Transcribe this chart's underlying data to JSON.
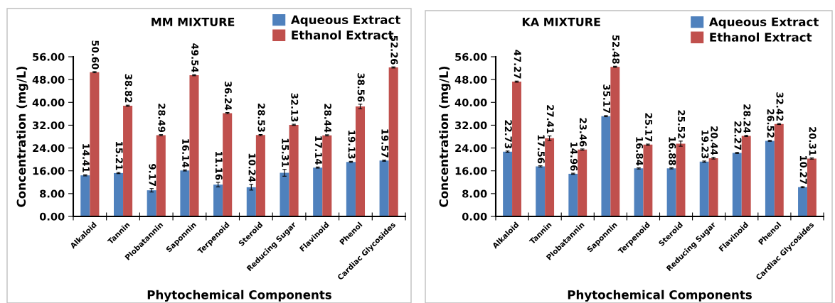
{
  "chart_data": [
    {
      "type": "bar",
      "title": "MM MIXTURE",
      "xlabel": "Phytochemical Components",
      "ylabel": "Concentration (mg/L)",
      "categories": [
        "Alkaloid",
        "Tannin",
        "Plobatannin",
        "Saponnin",
        "Terpenoid",
        "Steroid",
        "Reducing Sugar",
        "Flavinoid",
        "Phenol",
        "Cardiac Glycosides"
      ],
      "series": [
        {
          "name": "Aqueous Extract",
          "color": "#4f81bd",
          "values": [
            14.41,
            15.21,
            9.17,
            16.14,
            11.16,
            10.24,
            15.31,
            17.14,
            19.13,
            19.57
          ],
          "value_labels": [
            "14.41",
            "15.21",
            "9.17",
            "16.14",
            "11.16",
            "10.24",
            "15.31",
            "17.14",
            "19.13",
            "19.57"
          ],
          "errors": [
            0.2,
            0.2,
            0.6,
            0.2,
            0.8,
            1.0,
            1.2,
            0.2,
            0.2,
            0.2
          ]
        },
        {
          "name": "Ethanol Extract",
          "color": "#c0504d",
          "values": [
            50.6,
            38.82,
            28.49,
            49.54,
            36.24,
            28.53,
            32.13,
            28.44,
            38.56,
            52.26
          ],
          "value_labels": [
            "50.60",
            "38.82",
            "28.49",
            "49.54",
            "36.24",
            "28.53",
            "32.13",
            "28.44",
            "38.56",
            "52.26"
          ],
          "errors": [
            0.2,
            0.2,
            0.2,
            0.2,
            0.2,
            0.2,
            0.2,
            0.2,
            0.8,
            0.2
          ]
        }
      ],
      "ylim": [
        0,
        56
      ],
      "yticks": [
        {
          "value": 0,
          "label": "0.00"
        },
        {
          "value": 8,
          "label": "8.00"
        },
        {
          "value": 16,
          "label": "16.00"
        },
        {
          "value": 24,
          "label": "24.00"
        },
        {
          "value": 32,
          "label": "32.00"
        },
        {
          "value": 40,
          "label": "40.00"
        },
        {
          "value": 48,
          "label": "48.00"
        },
        {
          "value": 56,
          "label": "56.00"
        }
      ],
      "grid": false,
      "legend": "top right"
    },
    {
      "type": "bar",
      "title": "KA MIXTURE",
      "xlabel": "Phytochemical Components",
      "ylabel": "Concentration (mg/L)",
      "categories": [
        "Alkaloid",
        "Tannin",
        "Plobatannin",
        "Saponnin",
        "Terpenoid",
        "Steroid",
        "Reducing Sugar",
        "Flavinoid",
        "Phenol",
        "Cardiac Glycosides"
      ],
      "series": [
        {
          "name": "Aqueous Extract",
          "color": "#4f81bd",
          "values": [
            22.73,
            17.56,
            14.96,
            35.17,
            16.84,
            16.88,
            19.23,
            22.27,
            26.52,
            10.27
          ],
          "value_labels": [
            "22.73",
            "17.56",
            "14.96",
            "35.17",
            "16.84",
            "16.88",
            "19.23",
            "22.27",
            "26.52",
            "10.27"
          ],
          "errors": [
            0.2,
            0.2,
            0.2,
            0.2,
            0.2,
            0.2,
            0.2,
            0.2,
            0.2,
            0.2
          ]
        },
        {
          "name": "Ethanol Extract",
          "color": "#c0504d",
          "values": [
            47.27,
            27.41,
            23.46,
            52.48,
            25.17,
            25.52,
            20.44,
            28.24,
            32.42,
            20.31
          ],
          "value_labels": [
            "47.27",
            "27.41",
            "23.46",
            "52.48",
            "25.17",
            "25.52",
            "20.44",
            "28.24",
            "32.42",
            "20.31"
          ],
          "errors": [
            0.2,
            0.8,
            0.2,
            0.2,
            0.2,
            0.9,
            0.3,
            0.2,
            0.2,
            0.2
          ]
        }
      ],
      "ylim": [
        0,
        56
      ],
      "yticks": [
        {
          "value": 0,
          "label": "0.00"
        },
        {
          "value": 8,
          "label": "8.00"
        },
        {
          "value": 16,
          "label": "16.00"
        },
        {
          "value": 24,
          "label": "24.00"
        },
        {
          "value": 32,
          "label": "32.00"
        },
        {
          "value": 40,
          "label": "40.00"
        },
        {
          "value": 48,
          "label": "48.00"
        },
        {
          "value": 56,
          "label": "56.00"
        }
      ],
      "grid": false,
      "legend": "top right"
    }
  ]
}
